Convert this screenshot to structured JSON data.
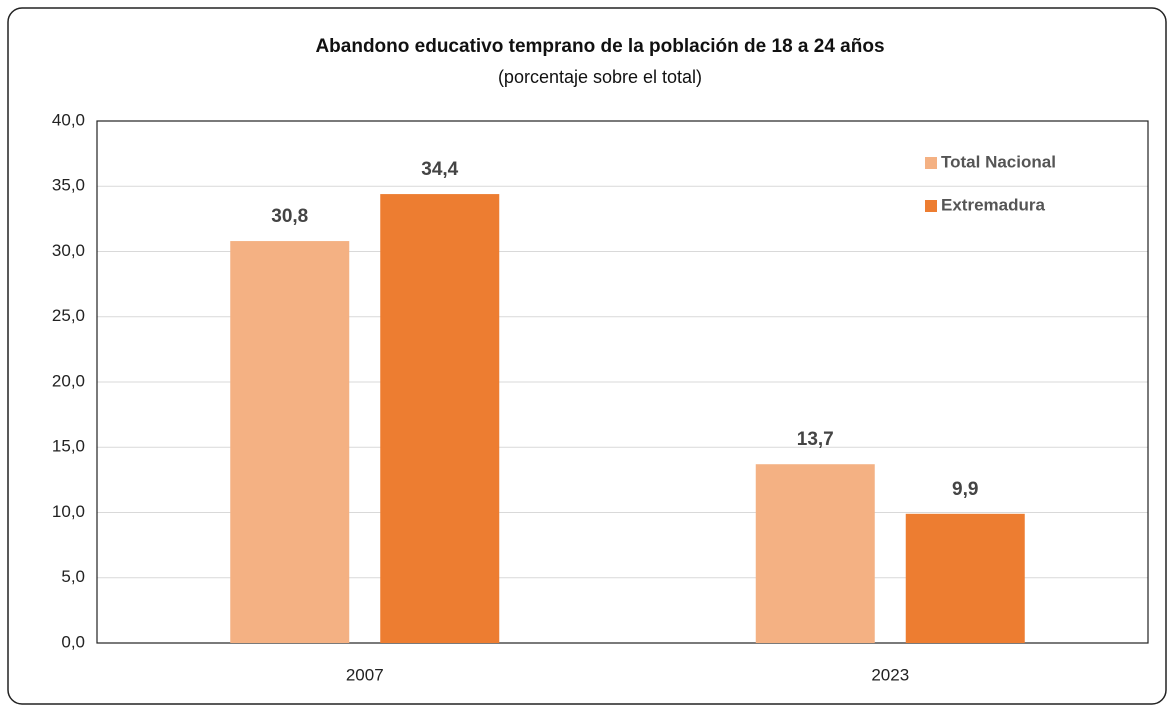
{
  "chart_data": {
    "type": "bar",
    "title": "Abandono educativo temprano de la población de 18 a 24 años",
    "subtitle": "(porcentaje sobre el total)",
    "categories": [
      "2007",
      "2023"
    ],
    "series": [
      {
        "name": "Total Nacional",
        "color": "#f4b183",
        "values": [
          30.8,
          13.7
        ],
        "value_labels": [
          "30,8",
          "13,7"
        ]
      },
      {
        "name": "Extremadura",
        "color": "#ed7d31",
        "values": [
          34.4,
          9.9
        ],
        "value_labels": [
          "34,4",
          "9,9"
        ]
      }
    ],
    "ylim": [
      0,
      40
    ],
    "yticks": [
      {
        "value": 0,
        "label": "0,0"
      },
      {
        "value": 5,
        "label": "5,0"
      },
      {
        "value": 10,
        "label": "10,0"
      },
      {
        "value": 15,
        "label": "15,0"
      },
      {
        "value": 20,
        "label": "20,0"
      },
      {
        "value": 25,
        "label": "25,0"
      },
      {
        "value": 30,
        "label": "30,0"
      },
      {
        "value": 35,
        "label": "35,0"
      },
      {
        "value": 40,
        "label": "40,0"
      }
    ],
    "grid": true,
    "legend": "top-right"
  }
}
